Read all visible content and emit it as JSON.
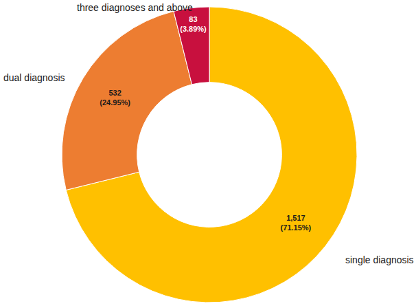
{
  "chart_data": {
    "type": "pie",
    "categories": [
      "single diagnosis",
      "dual diagnosis",
      "three diagnoses and above"
    ],
    "values": [
      1517,
      532,
      83
    ],
    "value_labels": [
      "1,517",
      "532",
      "83"
    ],
    "percentages": [
      71.15,
      24.95,
      3.89
    ],
    "percentage_labels": [
      "(71.15%)",
      "(24.95%)",
      "(3.89%)"
    ],
    "colors": [
      "#ffc000",
      "#ed7d31",
      "#c8103e"
    ],
    "data_labels": true,
    "legend": false
  }
}
